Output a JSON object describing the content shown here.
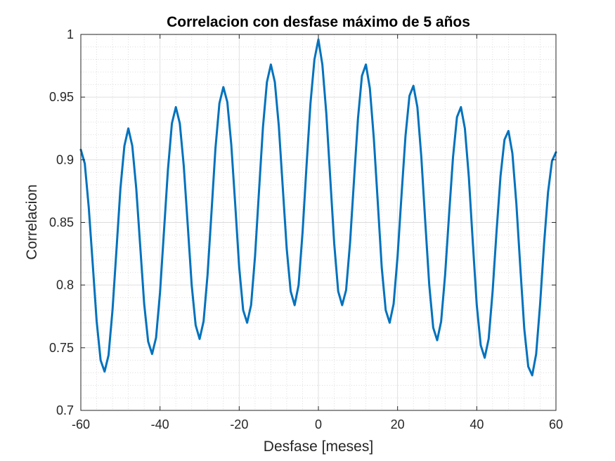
{
  "chart_data": {
    "type": "line",
    "title": "Correlacion con desfase máximo de 5 años",
    "xlabel": "Desfase [meses]",
    "ylabel": "Correlacion",
    "xlim": [
      -60,
      60
    ],
    "ylim": [
      0.7,
      1.0
    ],
    "xticks": [
      -60,
      -40,
      -20,
      0,
      20,
      40,
      60
    ],
    "xtick_labels": [
      "-60",
      "-40",
      "-20",
      "0",
      "20",
      "40",
      "60"
    ],
    "yticks": [
      0.7,
      0.75,
      0.8,
      0.85,
      0.9,
      0.95,
      1.0
    ],
    "ytick_labels": [
      "0.7",
      "0.75",
      "0.8",
      "0.85",
      "0.9",
      "0.95",
      "1"
    ],
    "grid": true,
    "minor_grid": true,
    "series": [
      {
        "color": "#0072bd",
        "x": [
          -60,
          -59,
          -58,
          -57,
          -56,
          -55,
          -54,
          -53,
          -52,
          -51,
          -50,
          -49,
          -48,
          -47,
          -46,
          -45,
          -44,
          -43,
          -42,
          -41,
          -40,
          -39,
          -38,
          -37,
          -36,
          -35,
          -34,
          -33,
          -32,
          -31,
          -30,
          -29,
          -28,
          -27,
          -26,
          -25,
          -24,
          -23,
          -22,
          -21,
          -20,
          -19,
          -18,
          -17,
          -16,
          -15,
          -14,
          -13,
          -12,
          -11,
          -10,
          -9,
          -8,
          -7,
          -6,
          -5,
          -4,
          -3,
          -2,
          -1,
          0,
          1,
          2,
          3,
          4,
          5,
          6,
          7,
          8,
          9,
          10,
          11,
          12,
          13,
          14,
          15,
          16,
          17,
          18,
          19,
          20,
          21,
          22,
          23,
          24,
          25,
          26,
          27,
          28,
          29,
          30,
          31,
          32,
          33,
          34,
          35,
          36,
          37,
          38,
          39,
          40,
          41,
          42,
          43,
          44,
          45,
          46,
          47,
          48,
          49,
          50,
          51,
          52,
          53,
          54,
          55,
          56,
          57,
          58,
          59,
          60
        ],
        "y": [
          0.908,
          0.897,
          0.862,
          0.817,
          0.771,
          0.74,
          0.731,
          0.744,
          0.78,
          0.828,
          0.877,
          0.911,
          0.925,
          0.911,
          0.877,
          0.831,
          0.785,
          0.755,
          0.745,
          0.758,
          0.794,
          0.843,
          0.892,
          0.929,
          0.942,
          0.929,
          0.895,
          0.848,
          0.8,
          0.768,
          0.757,
          0.771,
          0.808,
          0.858,
          0.909,
          0.945,
          0.958,
          0.946,
          0.912,
          0.864,
          0.814,
          0.78,
          0.77,
          0.784,
          0.823,
          0.875,
          0.926,
          0.962,
          0.976,
          0.962,
          0.927,
          0.878,
          0.829,
          0.795,
          0.784,
          0.8,
          0.842,
          0.895,
          0.945,
          0.98,
          0.996,
          0.976,
          0.937,
          0.885,
          0.833,
          0.795,
          0.784,
          0.796,
          0.834,
          0.884,
          0.933,
          0.967,
          0.976,
          0.957,
          0.917,
          0.866,
          0.814,
          0.78,
          0.77,
          0.785,
          0.823,
          0.872,
          0.919,
          0.951,
          0.959,
          0.942,
          0.902,
          0.85,
          0.8,
          0.766,
          0.756,
          0.771,
          0.808,
          0.856,
          0.902,
          0.934,
          0.942,
          0.925,
          0.886,
          0.834,
          0.784,
          0.752,
          0.742,
          0.757,
          0.795,
          0.843,
          0.887,
          0.916,
          0.923,
          0.905,
          0.865,
          0.814,
          0.765,
          0.735,
          0.728,
          0.745,
          0.785,
          0.833,
          0.874,
          0.899,
          0.906
        ]
      }
    ]
  }
}
